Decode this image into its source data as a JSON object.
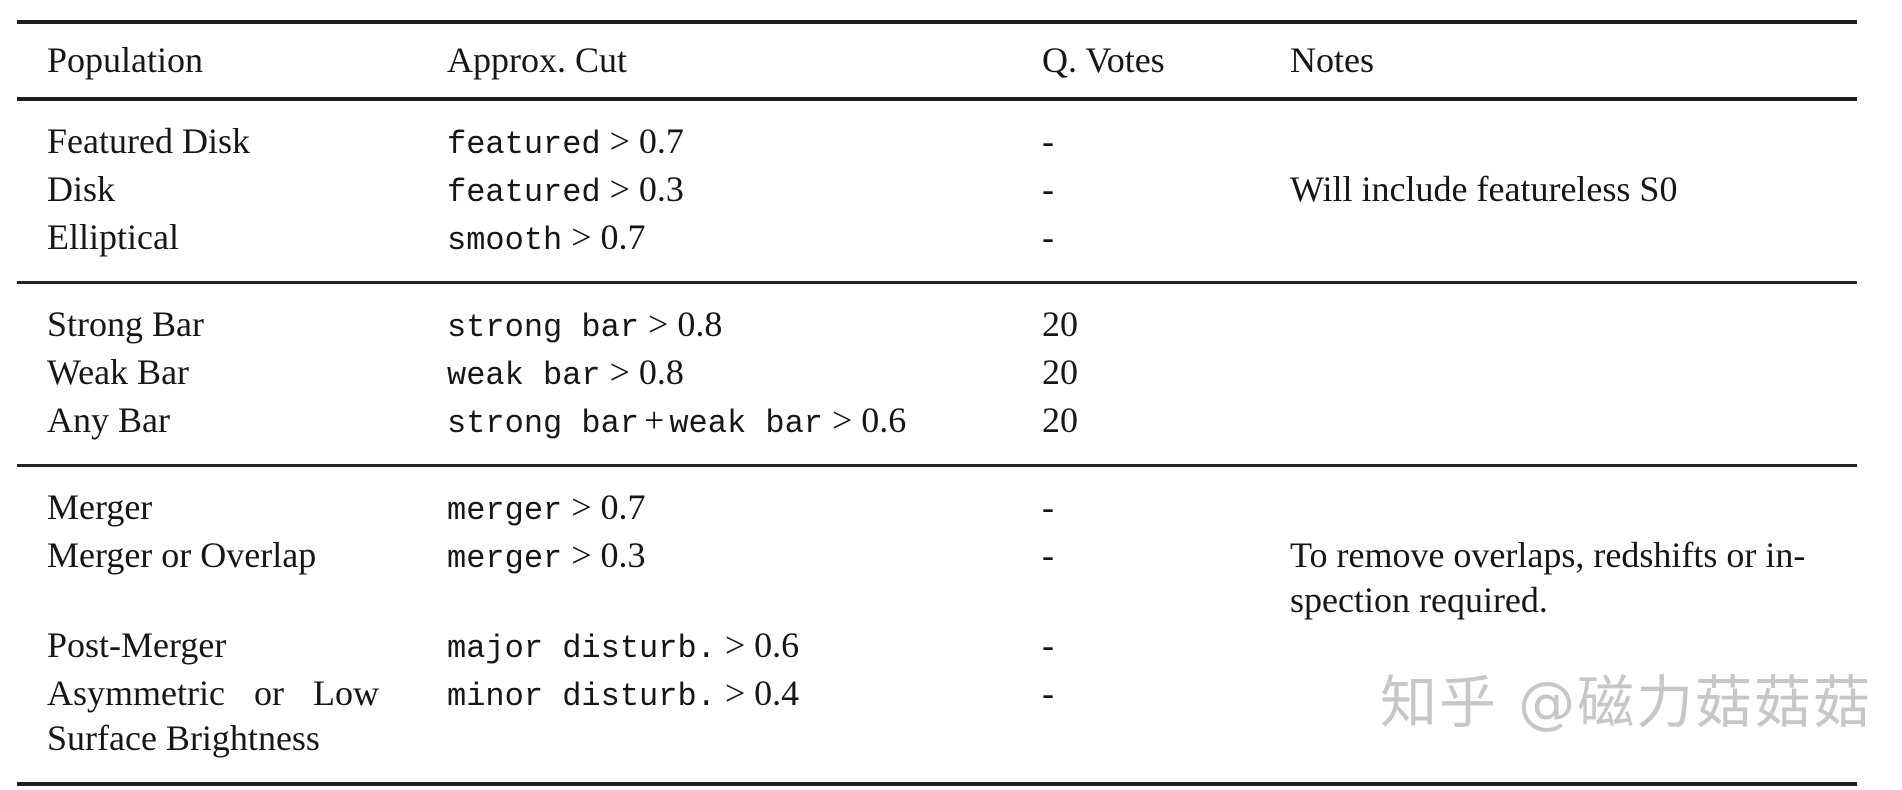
{
  "colors": {
    "background": "#ffffff",
    "text": "#161616",
    "rule": "#1e1e1e",
    "watermark": "#c7c7c7"
  },
  "table": {
    "columns": [
      "Population",
      "Approx. Cut",
      "Q. Votes",
      "Notes"
    ],
    "sections": [
      {
        "rows": [
          {
            "population_lines": [
              "Featured Disk"
            ],
            "cut": [
              "featured",
              "> 0.7"
            ],
            "votes": "-",
            "notes_lines": []
          },
          {
            "population_lines": [
              "Disk"
            ],
            "cut": [
              "featured",
              "> 0.3"
            ],
            "votes": "-",
            "notes_lines": [
              "Will include featureless S0"
            ]
          },
          {
            "population_lines": [
              "Elliptical"
            ],
            "cut": [
              "smooth",
              "> 0.7"
            ],
            "votes": "-",
            "notes_lines": []
          }
        ]
      },
      {
        "rows": [
          {
            "population_lines": [
              "Strong Bar"
            ],
            "cut": [
              "strong bar",
              "> 0.8"
            ],
            "votes": "20",
            "notes_lines": []
          },
          {
            "population_lines": [
              "Weak Bar"
            ],
            "cut": [
              "weak bar",
              "> 0.8"
            ],
            "votes": "20",
            "notes_lines": []
          },
          {
            "population_lines": [
              "Any Bar"
            ],
            "cut": [
              "strong bar",
              "+",
              "weak bar",
              "> 0.6"
            ],
            "votes": "20",
            "notes_lines": []
          }
        ]
      },
      {
        "rows": [
          {
            "population_lines": [
              "Merger"
            ],
            "cut": [
              "merger",
              "> 0.7"
            ],
            "votes": "-",
            "notes_lines": []
          },
          {
            "population_lines": [
              "Merger or Overlap"
            ],
            "cut": [
              "merger",
              "> 0.3"
            ],
            "votes": "-",
            "notes_lines": [
              "To remove overlaps, redshifts or in-",
              "spection required."
            ]
          },
          {
            "population_lines": [
              "Post-Merger"
            ],
            "cut": [
              "major disturb.",
              "> 0.6"
            ],
            "votes": "-",
            "notes_lines": []
          },
          {
            "population_lines": [
              "Asymmetric or Low",
              "Surface Brightness"
            ],
            "cut": [
              "minor disturb.",
              "> 0.4"
            ],
            "votes": "-",
            "notes_lines": []
          }
        ]
      }
    ]
  },
  "watermark": {
    "text": "知乎 @磁力菇菇菇"
  }
}
